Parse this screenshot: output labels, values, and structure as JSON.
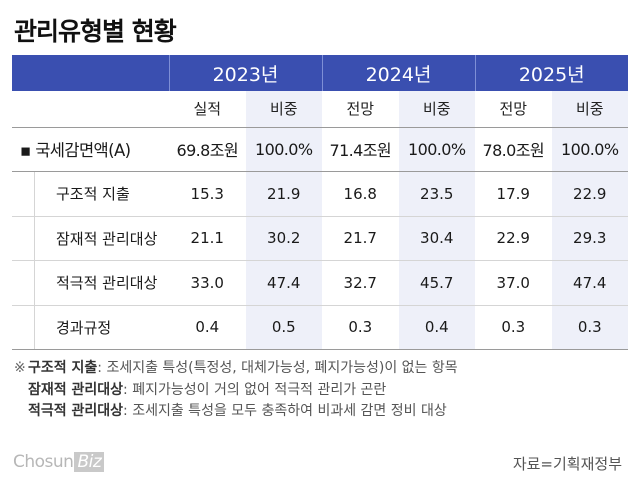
{
  "title": "관리유형별 현황",
  "years": [
    "2023년",
    "2024년",
    "2025년"
  ],
  "sub_headers": [
    "실적",
    "비중",
    "전망",
    "비중",
    "전망",
    "비중"
  ],
  "rows": [
    {
      "label": "▪ 국세감면액(A)",
      "values": [
        "69.8조원",
        "100.0%",
        "71.4조원",
        "100.0%",
        "78.0조원",
        "100.0%"
      ]
    },
    {
      "label": "구조적 지출",
      "values": [
        "15.3",
        "21.9",
        "16.8",
        "23.5",
        "17.9",
        "22.9"
      ]
    },
    {
      "label": "잠재적 관리대상",
      "values": [
        "21.1",
        "30.2",
        "21.7",
        "30.4",
        "22.9",
        "29.3"
      ]
    },
    {
      "label": "적극적 관리대상",
      "values": [
        "33.0",
        "47.4",
        "32.7",
        "45.7",
        "37.0",
        "47.4"
      ]
    },
    {
      "label": "경과규정",
      "values": [
        "0.4",
        "0.5",
        "0.3",
        "0.4",
        "0.3",
        "0.3"
      ]
    }
  ],
  "notes": {
    "mark": "※",
    "items": [
      {
        "term": "구조적 지출",
        "desc": ": 조세지출 특성(특정성, 대체가능성, 폐지가능성)이 없는 항목"
      },
      {
        "term": "잠재적 관리대상",
        "desc": ": 폐지가능성이 거의 없어 적극적 관리가 곤란"
      },
      {
        "term": "적극적 관리대상",
        "desc": ": 조세지출 특성을 모두 충족하여 비과세 감면 정비 대상"
      }
    ]
  },
  "logo": {
    "main": "Chosun",
    "accent": "Biz"
  },
  "source": "자료=기획재정부",
  "colors": {
    "header_bg": "#3a4fb0",
    "share_col_bg": "#eef0f9"
  }
}
